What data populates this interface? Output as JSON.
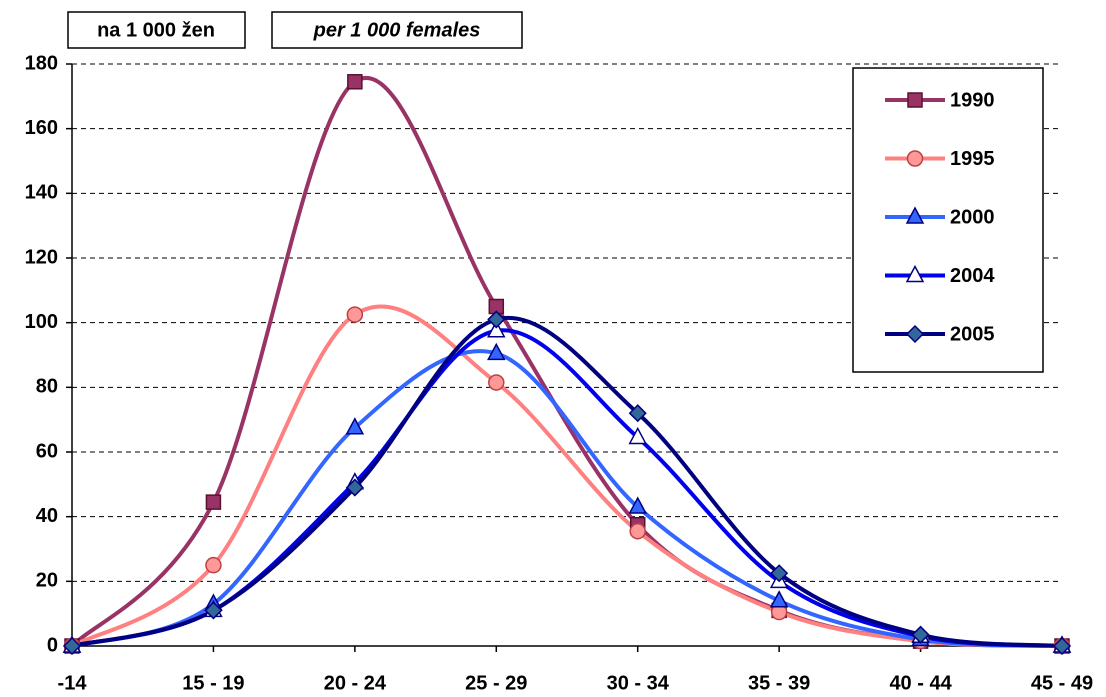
{
  "chart_data": {
    "type": "line",
    "annotations": [
      "na 1 000 žen",
      "per 1 000 females"
    ],
    "categories": [
      "-14",
      "15 - 19",
      "20 - 24",
      "25 - 29",
      "30 - 34",
      "35 - 39",
      "40 - 44",
      "45 - 49"
    ],
    "series": [
      {
        "name": "1990",
        "color": "#993366",
        "marker": "square",
        "marker_fill": "#993366",
        "values": [
          0,
          44.5,
          174.5,
          105,
          37.5,
          11,
          1.5,
          0
        ]
      },
      {
        "name": "1995",
        "color": "#ff8080",
        "marker": "circle",
        "marker_fill": "#ff9999",
        "values": [
          0,
          25,
          102.5,
          81.5,
          35.5,
          10.5,
          1.5,
          0
        ]
      },
      {
        "name": "2000",
        "color": "#3366ff",
        "marker": "triangle",
        "marker_fill": "#3366ff",
        "values": [
          0,
          13,
          67.5,
          90.5,
          43,
          14,
          2,
          0
        ]
      },
      {
        "name": "2004",
        "color": "#0000ee",
        "marker": "triangle",
        "marker_fill": "#ffffff",
        "values": [
          0,
          11,
          50.5,
          97.5,
          64.5,
          20,
          3,
          0
        ]
      },
      {
        "name": "2005",
        "color": "#000080",
        "marker": "diamond",
        "marker_fill": "#336699",
        "values": [
          0,
          11,
          49,
          101,
          72,
          22.5,
          3.5,
          0
        ]
      }
    ],
    "ylim": [
      0,
      180
    ],
    "yticks": [
      0,
      20,
      40,
      60,
      80,
      100,
      120,
      140,
      160,
      180
    ],
    "grid": true,
    "smooth": true,
    "legend": "top-right"
  }
}
